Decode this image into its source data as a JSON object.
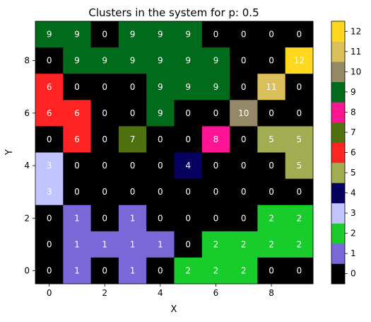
{
  "chart_data": {
    "type": "heatmap",
    "title": "Clusters in the system for p: 0.5",
    "xlabel": "X",
    "ylabel": "Y",
    "x_ticks": [
      0,
      2,
      4,
      6,
      8
    ],
    "y_ticks": [
      0,
      2,
      4,
      6,
      8
    ],
    "x_range": [
      -0.5,
      9.5
    ],
    "y_range": [
      -0.5,
      9.5
    ],
    "grid": false,
    "rows_top_to_bottom": [
      [
        9,
        9,
        0,
        9,
        9,
        9,
        0,
        0,
        0,
        0
      ],
      [
        0,
        9,
        9,
        9,
        9,
        9,
        9,
        0,
        0,
        12
      ],
      [
        6,
        0,
        0,
        0,
        9,
        9,
        9,
        0,
        11,
        0
      ],
      [
        6,
        6,
        0,
        0,
        9,
        0,
        0,
        10,
        0,
        0
      ],
      [
        0,
        6,
        0,
        7,
        0,
        0,
        8,
        0,
        5,
        5
      ],
      [
        3,
        0,
        0,
        0,
        0,
        4,
        0,
        0,
        0,
        5
      ],
      [
        3,
        0,
        0,
        0,
        0,
        0,
        0,
        0,
        0,
        0
      ],
      [
        0,
        1,
        0,
        1,
        0,
        0,
        0,
        0,
        2,
        2
      ],
      [
        0,
        1,
        1,
        1,
        1,
        0,
        2,
        2,
        2,
        2
      ],
      [
        0,
        1,
        0,
        1,
        0,
        2,
        2,
        2,
        0,
        0
      ]
    ],
    "colorbar": {
      "ticks": [
        0,
        1,
        2,
        3,
        4,
        5,
        6,
        7,
        8,
        9,
        10,
        11,
        12
      ],
      "colors": [
        "#000000",
        "#7b68d8",
        "#17cc2b",
        "#c2c4ff",
        "#06005f",
        "#a2ad52",
        "#ff2323",
        "#4f7110",
        "#ff1493",
        "#006b1a",
        "#958866",
        "#dabf5a",
        "#ffd71f"
      ]
    }
  }
}
